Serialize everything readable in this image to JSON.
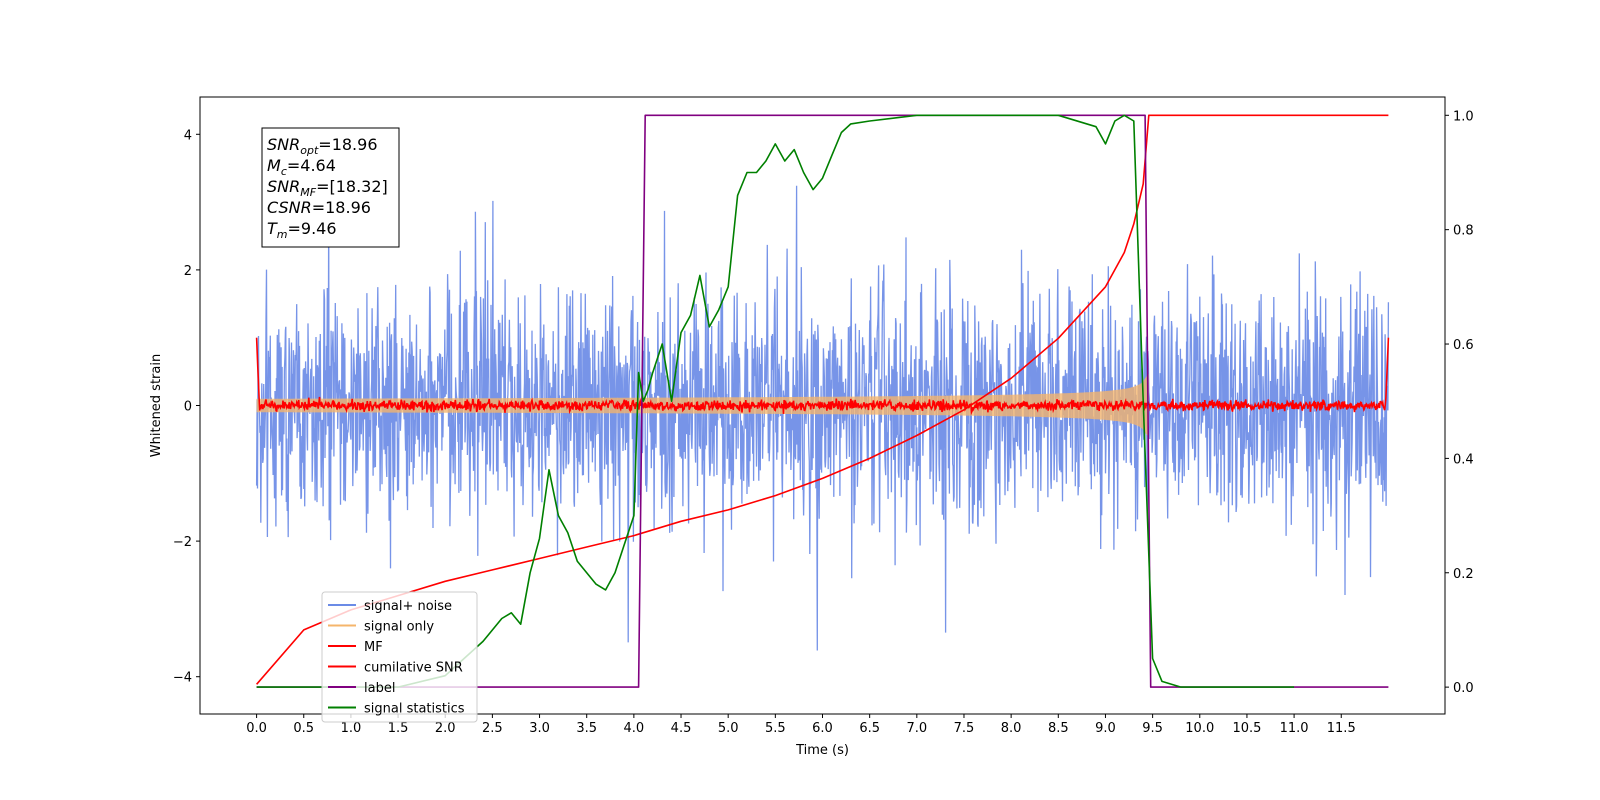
{
  "chart_data": {
    "type": "line",
    "xlabel": "Time (s)",
    "ylabel": "Whitened strain",
    "xlim": [
      -0.6,
      12.6
    ],
    "ylim": [
      -4.55,
      4.55
    ],
    "y2lim": [
      -0.047,
      1.032
    ],
    "x_ticks": [
      "0.0",
      "0.5",
      "1.0",
      "1.5",
      "2.0",
      "2.5",
      "3.0",
      "3.5",
      "4.0",
      "4.5",
      "5.0",
      "5.5",
      "6.0",
      "6.5",
      "7.0",
      "7.5",
      "8.0",
      "8.5",
      "9.0",
      "9.5",
      "10.0",
      "10.5",
      "11.0",
      "11.5"
    ],
    "y_ticks": [
      "−4",
      "−2",
      "0",
      "2",
      "4"
    ],
    "y2_ticks": [
      "0.0",
      "0.2",
      "0.4",
      "0.6",
      "0.8",
      "1.0"
    ],
    "grid": false,
    "legend_position": "lower-left",
    "annotation": {
      "lines": [
        {
          "main": "SNR",
          "sub": "opt",
          "value": "=18.96"
        },
        {
          "main": "M",
          "sub": "c",
          "value": "=4.64"
        },
        {
          "main": "SNR",
          "sub": "MF",
          "value": "=[18.32]"
        },
        {
          "main": "CSNR",
          "sub": "",
          "value": "=18.96"
        },
        {
          "main": "T",
          "sub": "m",
          "value": "=9.46"
        }
      ]
    },
    "series": [
      {
        "name": "signal+ noise",
        "color": "#6b8be6",
        "axis": "left",
        "kind": "noise",
        "x_range": [
          0.0,
          12.0
        ],
        "envelope": 1.0
      },
      {
        "name": "signal only",
        "color": "#f5b56b",
        "axis": "left",
        "kind": "chirp",
        "x_range": [
          0.0,
          9.46
        ],
        "amp_start": 0.1,
        "amp_end": 0.85
      },
      {
        "name": "MF",
        "color": "#ff0000",
        "axis": "left",
        "kind": "mf",
        "x_range": [
          0.0,
          12.0
        ],
        "edge_value": 1.0,
        "noise": 0.05
      },
      {
        "name": "cumilative SNR",
        "color": "#ff0000",
        "axis": "right",
        "x": [
          0.0,
          0.5,
          1.0,
          1.5,
          2.0,
          2.5,
          3.0,
          3.5,
          4.0,
          4.5,
          5.0,
          5.5,
          6.0,
          6.5,
          7.0,
          7.5,
          8.0,
          8.5,
          9.0,
          9.2,
          9.3,
          9.4,
          9.46,
          12.0
        ],
        "values": [
          0.005,
          0.1,
          0.135,
          0.16,
          0.185,
          0.205,
          0.225,
          0.245,
          0.265,
          0.29,
          0.31,
          0.335,
          0.365,
          0.4,
          0.44,
          0.485,
          0.54,
          0.61,
          0.7,
          0.76,
          0.81,
          0.88,
          1.0,
          1.0
        ]
      },
      {
        "name": "label",
        "color": "#800080",
        "axis": "right",
        "x": [
          0.0,
          4.05,
          4.12,
          9.42,
          9.48,
          12.0
        ],
        "values": [
          0.0,
          0.0,
          1.0,
          1.0,
          0.0,
          0.0
        ]
      },
      {
        "name": "signal statistics",
        "color": "#008000",
        "axis": "right",
        "x": [
          0.0,
          0.5,
          1.0,
          1.5,
          2.0,
          2.2,
          2.4,
          2.6,
          2.7,
          2.8,
          2.9,
          3.0,
          3.1,
          3.2,
          3.3,
          3.4,
          3.5,
          3.6,
          3.7,
          3.8,
          3.9,
          4.0,
          4.05,
          4.1,
          4.15,
          4.2,
          4.3,
          4.4,
          4.5,
          4.6,
          4.7,
          4.8,
          4.9,
          5.0,
          5.1,
          5.2,
          5.3,
          5.4,
          5.5,
          5.6,
          5.7,
          5.8,
          5.9,
          6.0,
          6.1,
          6.2,
          6.3,
          6.5,
          7.0,
          7.5,
          8.0,
          8.5,
          8.9,
          9.0,
          9.1,
          9.2,
          9.3,
          9.4,
          9.5,
          9.6,
          9.8,
          10.0,
          11.0
        ],
        "values": [
          0.0,
          0.0,
          0.0,
          0.0,
          0.02,
          0.05,
          0.08,
          0.12,
          0.13,
          0.11,
          0.2,
          0.26,
          0.38,
          0.3,
          0.27,
          0.22,
          0.2,
          0.18,
          0.17,
          0.2,
          0.25,
          0.3,
          0.55,
          0.5,
          0.52,
          0.55,
          0.6,
          0.5,
          0.62,
          0.65,
          0.72,
          0.63,
          0.66,
          0.7,
          0.86,
          0.9,
          0.9,
          0.92,
          0.95,
          0.92,
          0.94,
          0.9,
          0.87,
          0.89,
          0.93,
          0.97,
          0.985,
          0.99,
          1.0,
          1.0,
          1.0,
          1.0,
          0.98,
          0.95,
          0.99,
          1.0,
          0.99,
          0.5,
          0.05,
          0.01,
          0.0,
          0.0,
          0.0
        ]
      }
    ]
  }
}
